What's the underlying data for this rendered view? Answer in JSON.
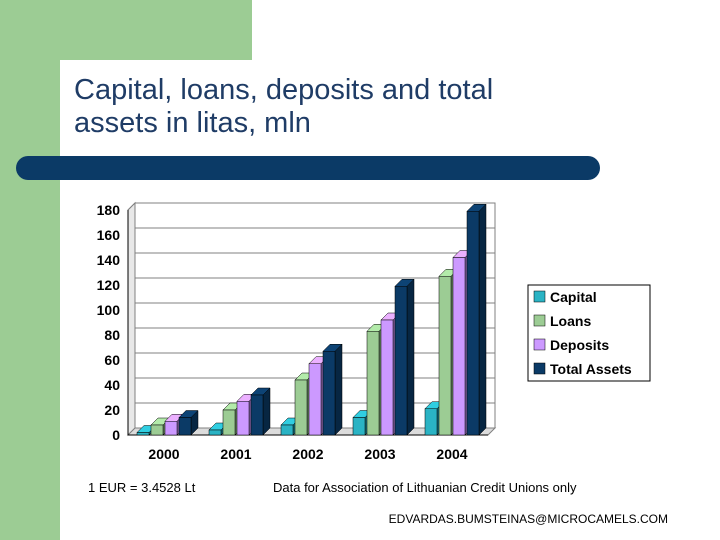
{
  "slide": {
    "title_line1": "Capital, loans, deposits and total",
    "title_line2": "assets in litas, mln",
    "exchange_note": "1 EUR = 3.4528 Lt",
    "source_note": "Data for Association of Lithuanian Credit Unions only",
    "email": "EDVARDAS.BUMSTEINAS@MICROCAMELS.COM",
    "colors": {
      "green_panel": "#9ccc94",
      "navy_bar": "#0b3a66",
      "title": "#1f3c66"
    }
  },
  "chart_data": {
    "type": "bar",
    "title": "",
    "xlabel": "",
    "ylabel": "",
    "categories": [
      "2000",
      "2001",
      "2002",
      "2003",
      "2004"
    ],
    "series": [
      {
        "name": "Capital",
        "color": "#2ab3c4",
        "values": [
          2,
          4,
          8,
          14,
          21
        ]
      },
      {
        "name": "Loans",
        "color": "#9ccc94",
        "values": [
          8,
          20,
          44,
          83,
          127
        ]
      },
      {
        "name": "Deposits",
        "color": "#cc99ff",
        "values": [
          11,
          27,
          57,
          92,
          142
        ]
      },
      {
        "name": "Total Assets",
        "color": "#0b3a66",
        "values": [
          14,
          32,
          67,
          119,
          179
        ]
      }
    ],
    "ylim": [
      0,
      180
    ],
    "yticks": [
      "0",
      "20",
      "40",
      "60",
      "80",
      "100",
      "120",
      "140",
      "160",
      "180"
    ],
    "grid": true,
    "legend_position": "right"
  }
}
